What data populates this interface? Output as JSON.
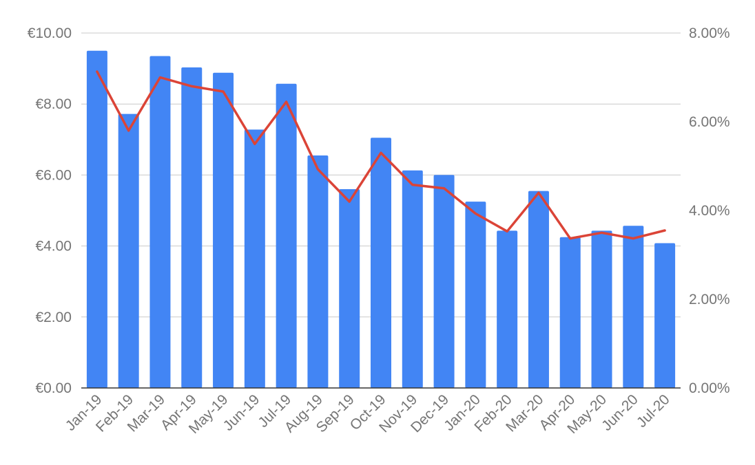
{
  "chart_data": {
    "type": "bar",
    "title": "",
    "xlabel": "",
    "ylabel": "",
    "ylabel_right": "",
    "grid": true,
    "legend": "none",
    "categories": [
      "Jan-19",
      "Feb-19",
      "Mar-19",
      "Apr-19",
      "May-19",
      "Jun-19",
      "Jul-19",
      "Aug-19",
      "Sep-19",
      "Oct-19",
      "Nov-19",
      "Dec-19",
      "Jan-20",
      "Feb-20",
      "Mar-20",
      "Apr-20",
      "May-20",
      "Jun-20",
      "Jul-20"
    ],
    "ylim": [
      0,
      10
    ],
    "ylim_right": [
      0,
      8
    ],
    "y_ticks": [
      "€0.00",
      "€2.00",
      "€4.00",
      "€6.00",
      "€8.00",
      "€10.00"
    ],
    "y_tick_values": [
      0,
      2,
      4,
      6,
      8,
      10
    ],
    "y_right_ticks": [
      "0.00%",
      "2.00%",
      "4.00%",
      "6.00%",
      "8.00%"
    ],
    "y_right_tick_values": [
      0,
      2,
      4,
      6,
      8
    ],
    "series": [
      {
        "type": "bar",
        "axis": "left",
        "color": "#4285f4",
        "values": [
          9.5,
          7.72,
          9.35,
          9.03,
          8.88,
          7.28,
          8.57,
          6.55,
          5.6,
          7.05,
          6.13,
          6.0,
          5.25,
          4.43,
          5.55,
          4.25,
          4.43,
          4.57,
          4.08
        ]
      },
      {
        "type": "line",
        "axis": "right",
        "color": "#db4437",
        "values": [
          7.13,
          5.8,
          7.0,
          6.8,
          6.68,
          5.5,
          6.45,
          4.93,
          4.2,
          5.3,
          4.58,
          4.5,
          3.93,
          3.53,
          4.4,
          3.37,
          3.5,
          3.37,
          3.55
        ]
      }
    ]
  }
}
